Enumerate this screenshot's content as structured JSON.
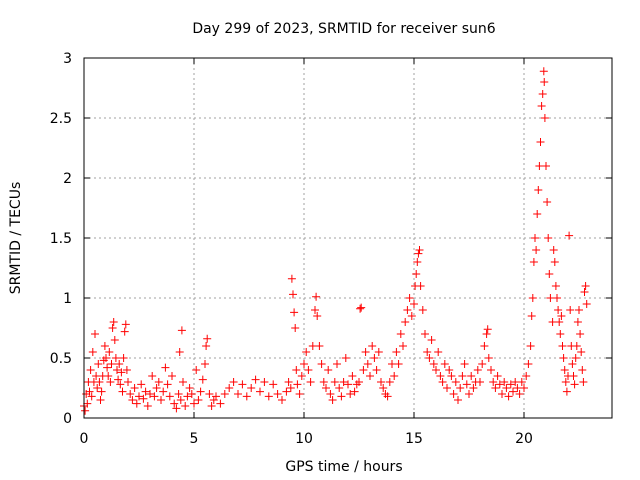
{
  "chart_data": {
    "type": "scatter",
    "title": "Day 299 of 2023, SRMTID for receiver sun6",
    "xlabel": "GPS time / hours",
    "ylabel": "SRMTID / TECUs",
    "xlim": [
      0,
      24
    ],
    "ylim": [
      0,
      3
    ],
    "xticks": [
      0,
      5,
      10,
      15,
      20
    ],
    "xtick_labels": [
      "0",
      "5",
      "10",
      "15",
      "20"
    ],
    "yticks": [
      0,
      0.5,
      1,
      1.5,
      2,
      2.5,
      3
    ],
    "ytick_labels": [
      "0",
      "0.5",
      "1",
      "1.5",
      "2",
      "2.5",
      "3"
    ],
    "grid": true,
    "marker": "+",
    "series": [
      {
        "name": "SRMTID",
        "color": "#ff0000",
        "points": [
          [
            0.0,
            0.1
          ],
          [
            0.05,
            0.06
          ],
          [
            0.1,
            0.2
          ],
          [
            0.15,
            0.12
          ],
          [
            0.2,
            0.3
          ],
          [
            0.25,
            0.22
          ],
          [
            0.3,
            0.4
          ],
          [
            0.35,
            0.18
          ],
          [
            0.4,
            0.55
          ],
          [
            0.45,
            0.3
          ],
          [
            0.5,
            0.7
          ],
          [
            0.55,
            0.35
          ],
          [
            0.6,
            0.25
          ],
          [
            0.65,
            0.45
          ],
          [
            0.7,
            0.3
          ],
          [
            0.75,
            0.15
          ],
          [
            0.8,
            0.22
          ],
          [
            0.85,
            0.35
          ],
          [
            0.9,
            0.48
          ],
          [
            0.95,
            0.6
          ],
          [
            1.0,
            0.5
          ],
          [
            1.05,
            0.42
          ],
          [
            1.1,
            0.35
          ],
          [
            1.15,
            0.55
          ],
          [
            1.2,
            0.3
          ],
          [
            1.25,
            0.45
          ],
          [
            1.3,
            0.75
          ],
          [
            1.35,
            0.8
          ],
          [
            1.4,
            0.65
          ],
          [
            1.45,
            0.5
          ],
          [
            1.5,
            0.4
          ],
          [
            1.55,
            0.32
          ],
          [
            1.6,
            0.45
          ],
          [
            1.65,
            0.28
          ],
          [
            1.7,
            0.38
          ],
          [
            1.75,
            0.22
          ],
          [
            1.8,
            0.5
          ],
          [
            1.85,
            0.72
          ],
          [
            1.9,
            0.78
          ],
          [
            1.95,
            0.4
          ],
          [
            2.0,
            0.3
          ],
          [
            2.1,
            0.2
          ],
          [
            2.2,
            0.15
          ],
          [
            2.3,
            0.25
          ],
          [
            2.4,
            0.12
          ],
          [
            2.5,
            0.18
          ],
          [
            2.6,
            0.28
          ],
          [
            2.7,
            0.16
          ],
          [
            2.8,
            0.22
          ],
          [
            2.9,
            0.1
          ],
          [
            3.0,
            0.2
          ],
          [
            3.1,
            0.35
          ],
          [
            3.2,
            0.18
          ],
          [
            3.3,
            0.25
          ],
          [
            3.4,
            0.3
          ],
          [
            3.5,
            0.15
          ],
          [
            3.6,
            0.22
          ],
          [
            3.7,
            0.42
          ],
          [
            3.8,
            0.28
          ],
          [
            3.9,
            0.18
          ],
          [
            4.0,
            0.35
          ],
          [
            4.1,
            0.12
          ],
          [
            4.2,
            0.08
          ],
          [
            4.3,
            0.2
          ],
          [
            4.35,
            0.55
          ],
          [
            4.4,
            0.15
          ],
          [
            4.45,
            0.73
          ],
          [
            4.5,
            0.3
          ],
          [
            4.6,
            0.1
          ],
          [
            4.7,
            0.18
          ],
          [
            4.8,
            0.25
          ],
          [
            4.9,
            0.2
          ],
          [
            5.0,
            0.12
          ],
          [
            5.1,
            0.4
          ],
          [
            5.2,
            0.15
          ],
          [
            5.3,
            0.22
          ],
          [
            5.4,
            0.32
          ],
          [
            5.5,
            0.45
          ],
          [
            5.55,
            0.6
          ],
          [
            5.6,
            0.66
          ],
          [
            5.7,
            0.2
          ],
          [
            5.8,
            0.1
          ],
          [
            5.9,
            0.15
          ],
          [
            6.0,
            0.18
          ],
          [
            6.2,
            0.12
          ],
          [
            6.4,
            0.2
          ],
          [
            6.6,
            0.25
          ],
          [
            6.8,
            0.3
          ],
          [
            7.0,
            0.2
          ],
          [
            7.2,
            0.28
          ],
          [
            7.4,
            0.18
          ],
          [
            7.6,
            0.25
          ],
          [
            7.8,
            0.32
          ],
          [
            8.0,
            0.22
          ],
          [
            8.2,
            0.3
          ],
          [
            8.4,
            0.18
          ],
          [
            8.6,
            0.28
          ],
          [
            8.8,
            0.2
          ],
          [
            9.0,
            0.15
          ],
          [
            9.2,
            0.22
          ],
          [
            9.3,
            0.3
          ],
          [
            9.4,
            0.25
          ],
          [
            9.45,
            1.16
          ],
          [
            9.5,
            1.03
          ],
          [
            9.55,
            0.88
          ],
          [
            9.6,
            0.75
          ],
          [
            9.65,
            0.4
          ],
          [
            9.7,
            0.28
          ],
          [
            9.8,
            0.2
          ],
          [
            9.9,
            0.35
          ],
          [
            10.0,
            0.45
          ],
          [
            10.1,
            0.55
          ],
          [
            10.2,
            0.4
          ],
          [
            10.3,
            0.3
          ],
          [
            10.4,
            0.6
          ],
          [
            10.5,
            0.9
          ],
          [
            10.55,
            1.01
          ],
          [
            10.6,
            0.85
          ],
          [
            10.7,
            0.6
          ],
          [
            10.8,
            0.45
          ],
          [
            10.9,
            0.3
          ],
          [
            11.0,
            0.25
          ],
          [
            11.1,
            0.4
          ],
          [
            11.2,
            0.2
          ],
          [
            11.3,
            0.15
          ],
          [
            11.4,
            0.3
          ],
          [
            11.5,
            0.45
          ],
          [
            11.6,
            0.25
          ],
          [
            11.7,
            0.18
          ],
          [
            11.8,
            0.3
          ],
          [
            11.9,
            0.5
          ],
          [
            12.0,
            0.28
          ],
          [
            12.1,
            0.2
          ],
          [
            12.2,
            0.35
          ],
          [
            12.3,
            0.22
          ],
          [
            12.4,
            0.28
          ],
          [
            12.5,
            0.3
          ],
          [
            12.55,
            0.91
          ],
          [
            12.6,
            0.92
          ],
          [
            12.7,
            0.4
          ],
          [
            12.8,
            0.55
          ],
          [
            12.9,
            0.45
          ],
          [
            13.0,
            0.35
          ],
          [
            13.1,
            0.6
          ],
          [
            13.2,
            0.5
          ],
          [
            13.3,
            0.4
          ],
          [
            13.4,
            0.55
          ],
          [
            13.5,
            0.3
          ],
          [
            13.6,
            0.25
          ],
          [
            13.7,
            0.2
          ],
          [
            13.8,
            0.18
          ],
          [
            13.9,
            0.3
          ],
          [
            14.0,
            0.45
          ],
          [
            14.1,
            0.35
          ],
          [
            14.2,
            0.55
          ],
          [
            14.3,
            0.45
          ],
          [
            14.4,
            0.7
          ],
          [
            14.5,
            0.6
          ],
          [
            14.6,
            0.8
          ],
          [
            14.7,
            0.9
          ],
          [
            14.8,
            1.0
          ],
          [
            14.9,
            0.85
          ],
          [
            15.0,
            0.95
          ],
          [
            15.05,
            1.1
          ],
          [
            15.1,
            1.2
          ],
          [
            15.15,
            1.3
          ],
          [
            15.2,
            1.37
          ],
          [
            15.25,
            1.4
          ],
          [
            15.3,
            1.1
          ],
          [
            15.4,
            0.9
          ],
          [
            15.5,
            0.7
          ],
          [
            15.6,
            0.55
          ],
          [
            15.7,
            0.5
          ],
          [
            15.8,
            0.65
          ],
          [
            15.9,
            0.45
          ],
          [
            16.0,
            0.4
          ],
          [
            16.1,
            0.55
          ],
          [
            16.2,
            0.35
          ],
          [
            16.3,
            0.3
          ],
          [
            16.4,
            0.45
          ],
          [
            16.5,
            0.25
          ],
          [
            16.6,
            0.4
          ],
          [
            16.7,
            0.35
          ],
          [
            16.8,
            0.2
          ],
          [
            16.9,
            0.3
          ],
          [
            17.0,
            0.15
          ],
          [
            17.1,
            0.25
          ],
          [
            17.2,
            0.35
          ],
          [
            17.3,
            0.45
          ],
          [
            17.4,
            0.28
          ],
          [
            17.5,
            0.2
          ],
          [
            17.6,
            0.35
          ],
          [
            17.7,
            0.25
          ],
          [
            17.8,
            0.3
          ],
          [
            17.9,
            0.4
          ],
          [
            18.0,
            0.3
          ],
          [
            18.1,
            0.45
          ],
          [
            18.2,
            0.6
          ],
          [
            18.3,
            0.7
          ],
          [
            18.35,
            0.74
          ],
          [
            18.4,
            0.5
          ],
          [
            18.5,
            0.4
          ],
          [
            18.6,
            0.3
          ],
          [
            18.7,
            0.25
          ],
          [
            18.8,
            0.35
          ],
          [
            18.9,
            0.28
          ],
          [
            19.0,
            0.2
          ],
          [
            19.1,
            0.3
          ],
          [
            19.2,
            0.25
          ],
          [
            19.3,
            0.18
          ],
          [
            19.4,
            0.28
          ],
          [
            19.5,
            0.22
          ],
          [
            19.6,
            0.3
          ],
          [
            19.7,
            0.25
          ],
          [
            19.8,
            0.2
          ],
          [
            19.9,
            0.3
          ],
          [
            20.0,
            0.25
          ],
          [
            20.1,
            0.35
          ],
          [
            20.2,
            0.45
          ],
          [
            20.3,
            0.6
          ],
          [
            20.35,
            0.85
          ],
          [
            20.4,
            1.0
          ],
          [
            20.45,
            1.3
          ],
          [
            20.5,
            1.5
          ],
          [
            20.55,
            1.4
          ],
          [
            20.6,
            1.7
          ],
          [
            20.65,
            1.9
          ],
          [
            20.7,
            2.1
          ],
          [
            20.75,
            2.3
          ],
          [
            20.8,
            2.6
          ],
          [
            20.85,
            2.7
          ],
          [
            20.9,
            2.89
          ],
          [
            20.92,
            2.8
          ],
          [
            20.95,
            2.5
          ],
          [
            21.0,
            2.1
          ],
          [
            21.05,
            1.8
          ],
          [
            21.1,
            1.5
          ],
          [
            21.15,
            1.2
          ],
          [
            21.2,
            1.0
          ],
          [
            21.3,
            0.8
          ],
          [
            21.35,
            1.4
          ],
          [
            21.4,
            1.3
          ],
          [
            21.45,
            1.1
          ],
          [
            21.5,
            1.0
          ],
          [
            21.55,
            0.9
          ],
          [
            21.6,
            0.8
          ],
          [
            21.65,
            0.7
          ],
          [
            21.7,
            0.85
          ],
          [
            21.75,
            0.6
          ],
          [
            21.8,
            0.5
          ],
          [
            21.85,
            0.4
          ],
          [
            21.9,
            0.3
          ],
          [
            21.95,
            0.22
          ],
          [
            22.0,
            0.35
          ],
          [
            22.05,
            1.52
          ],
          [
            22.1,
            0.9
          ],
          [
            22.15,
            0.6
          ],
          [
            22.2,
            0.45
          ],
          [
            22.25,
            0.35
          ],
          [
            22.3,
            0.28
          ],
          [
            22.35,
            0.5
          ],
          [
            22.4,
            0.6
          ],
          [
            22.45,
            0.8
          ],
          [
            22.5,
            0.9
          ],
          [
            22.55,
            0.7
          ],
          [
            22.6,
            0.55
          ],
          [
            22.65,
            0.4
          ],
          [
            22.7,
            0.3
          ],
          [
            22.75,
            1.05
          ],
          [
            22.8,
            1.1
          ],
          [
            22.85,
            0.95
          ]
        ]
      }
    ]
  }
}
